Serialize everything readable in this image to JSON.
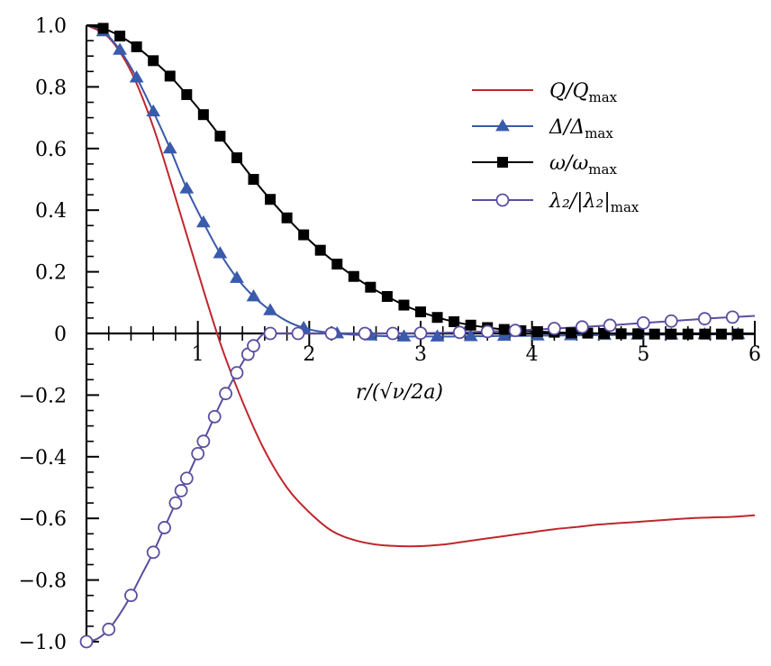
{
  "chart_data": {
    "type": "line",
    "xlabel": "r/(√ν/2a)",
    "xlim": [
      0,
      6
    ],
    "ylim": [
      -1.0,
      1.0
    ],
    "x_ticks": [
      "1",
      "2",
      "3",
      "4",
      "5",
      "6"
    ],
    "y_ticks": [
      "1.0",
      "0.8",
      "0.6",
      "0.4",
      "0.2",
      "0",
      "−0.2",
      "−0.4",
      "−0.6",
      "−0.8",
      "−1.0"
    ],
    "grid": false,
    "legend_position": "top-right",
    "series": [
      {
        "name": "Q/Q_max",
        "label_main": "Q/Q",
        "label_sub": "max",
        "color": "#c0272d",
        "marker": "none",
        "x": [
          0,
          0.2,
          0.4,
          0.6,
          0.8,
          1.0,
          1.2,
          1.4,
          1.6,
          1.8,
          2.0,
          2.2,
          2.4,
          2.6,
          2.8,
          3.0,
          3.2,
          3.4,
          3.6,
          3.8,
          4.0,
          4.2,
          4.4,
          4.6,
          4.8,
          5.0,
          5.2,
          5.4,
          5.6,
          5.8,
          6.0
        ],
        "y": [
          1.0,
          0.96,
          0.85,
          0.67,
          0.44,
          0.2,
          -0.03,
          -0.22,
          -0.38,
          -0.5,
          -0.58,
          -0.64,
          -0.67,
          -0.685,
          -0.69,
          -0.69,
          -0.685,
          -0.675,
          -0.665,
          -0.655,
          -0.645,
          -0.635,
          -0.628,
          -0.62,
          -0.615,
          -0.61,
          -0.605,
          -0.6,
          -0.597,
          -0.595,
          -0.59
        ]
      },
      {
        "name": "Δ/Δ_max",
        "label_main": "Δ/Δ",
        "label_sub": "max",
        "color": "#3a5aab",
        "marker": "triangle",
        "x": [
          0,
          0.15,
          0.3,
          0.45,
          0.6,
          0.75,
          0.9,
          1.05,
          1.2,
          1.35,
          1.5,
          1.65,
          1.8,
          1.95,
          2.1,
          2.25,
          2.4,
          2.55,
          2.7,
          2.85,
          3.0,
          3.15,
          3.3,
          3.45,
          3.6,
          3.75,
          3.9,
          4.05,
          4.2,
          4.35,
          4.5,
          4.65,
          4.8,
          4.95,
          5.1,
          5.25,
          5.4,
          5.55,
          5.7,
          5.85,
          6.0
        ],
        "y": [
          1.0,
          0.98,
          0.92,
          0.83,
          0.72,
          0.6,
          0.47,
          0.36,
          0.26,
          0.18,
          0.12,
          0.075,
          0.04,
          0.018,
          0.006,
          0.0,
          -0.004,
          -0.007,
          -0.009,
          -0.01,
          -0.01,
          -0.01,
          -0.01,
          -0.009,
          -0.009,
          -0.008,
          -0.008,
          -0.007,
          -0.007,
          -0.006,
          -0.006,
          -0.005,
          -0.005,
          -0.004,
          -0.004,
          -0.004,
          -0.003,
          -0.003,
          -0.003,
          -0.002,
          -0.002
        ],
        "marker_x": [
          0.15,
          0.3,
          0.45,
          0.6,
          0.75,
          0.9,
          1.05,
          1.2,
          1.35,
          1.5,
          1.65,
          1.95,
          2.25,
          2.55,
          2.85,
          3.15,
          3.45,
          3.75,
          4.05,
          4.35,
          4.65,
          4.95,
          5.25,
          5.55,
          5.85
        ]
      },
      {
        "name": "ω/ω_max",
        "label_main": "ω/ω",
        "label_sub": "max",
        "color": "#000000",
        "marker": "square",
        "x": [
          0,
          0.15,
          0.3,
          0.45,
          0.6,
          0.75,
          0.9,
          1.05,
          1.2,
          1.35,
          1.5,
          1.65,
          1.8,
          1.95,
          2.1,
          2.25,
          2.4,
          2.55,
          2.7,
          2.85,
          3.0,
          3.15,
          3.3,
          3.45,
          3.6,
          3.75,
          3.9,
          4.05,
          4.2,
          4.35,
          4.5,
          4.65,
          4.8,
          4.95,
          5.1,
          5.25,
          5.4,
          5.55,
          5.7,
          5.85,
          6.0
        ],
        "y": [
          1.0,
          0.99,
          0.965,
          0.93,
          0.885,
          0.835,
          0.775,
          0.71,
          0.64,
          0.57,
          0.5,
          0.435,
          0.375,
          0.32,
          0.27,
          0.225,
          0.185,
          0.15,
          0.12,
          0.092,
          0.07,
          0.052,
          0.038,
          0.027,
          0.019,
          0.013,
          0.009,
          0.006,
          0.004,
          0.002,
          0.001,
          0.0,
          -0.001,
          -0.001,
          -0.002,
          -0.002,
          -0.002,
          -0.002,
          -0.002,
          -0.002,
          -0.002
        ],
        "marker_x": [
          0.15,
          0.3,
          0.45,
          0.6,
          0.75,
          0.9,
          1.05,
          1.2,
          1.35,
          1.5,
          1.65,
          1.8,
          1.95,
          2.1,
          2.25,
          2.4,
          2.55,
          2.7,
          2.85,
          3.0,
          3.15,
          3.3,
          3.45,
          3.6,
          3.75,
          3.9,
          4.05,
          4.2,
          4.35,
          4.5,
          4.65,
          4.8,
          4.95,
          5.1,
          5.25,
          5.4,
          5.55,
          5.7,
          5.85
        ]
      },
      {
        "name": "λ2/|λ2|_max",
        "label_main": "λ₂/|λ₂|",
        "label_sub": "max",
        "color": "#5b4ea0",
        "marker": "circle",
        "x": [
          0,
          0.1,
          0.2,
          0.3,
          0.4,
          0.5,
          0.6,
          0.7,
          0.8,
          0.9,
          1.0,
          1.1,
          1.2,
          1.3,
          1.4,
          1.5,
          1.55,
          1.6,
          1.7,
          1.8,
          2.0,
          2.2,
          2.4,
          2.6,
          2.8,
          3.0,
          3.2,
          3.4,
          3.6,
          3.8,
          4.0,
          4.2,
          4.4,
          4.6,
          4.8,
          5.0,
          5.2,
          5.4,
          5.6,
          5.8,
          6.0
        ],
        "y": [
          -1.0,
          -0.99,
          -0.96,
          -0.91,
          -0.85,
          -0.78,
          -0.71,
          -0.63,
          -0.55,
          -0.47,
          -0.39,
          -0.31,
          -0.23,
          -0.16,
          -0.095,
          -0.04,
          -0.015,
          0.0,
          0.0,
          0.0,
          0.0,
          0.0,
          0.0,
          0.0,
          0.0,
          0.001,
          0.002,
          0.004,
          0.006,
          0.009,
          0.012,
          0.016,
          0.02,
          0.024,
          0.029,
          0.034,
          0.039,
          0.044,
          0.049,
          0.053,
          0.057
        ],
        "marker_x": [
          0.0,
          0.2,
          0.4,
          0.6,
          0.7,
          0.8,
          0.85,
          0.9,
          1.0,
          1.05,
          1.15,
          1.25,
          1.35,
          1.45,
          1.5,
          1.65,
          1.9,
          2.2,
          2.5,
          2.75,
          3.0,
          3.35,
          3.6,
          3.85,
          4.2,
          4.45,
          4.7,
          5.0,
          5.25,
          5.55,
          5.8
        ]
      }
    ]
  }
}
